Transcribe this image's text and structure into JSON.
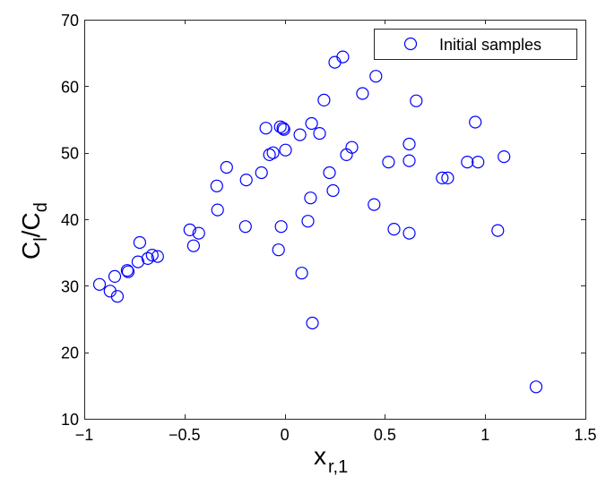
{
  "chart_data": {
    "type": "scatter",
    "title": "",
    "xlabel": "x_{r,1}",
    "xlabel_main": "x",
    "xlabel_sub": "r,1",
    "ylabel": "C_l/C_d",
    "ylabel_parts": {
      "c1": "C",
      "sub1": "l",
      "slash": "/",
      "c2": "C",
      "sub2": "d"
    },
    "xlim": [
      -1,
      1.5
    ],
    "ylim": [
      10,
      70
    ],
    "xticks": [
      -1,
      -0.5,
      0,
      0.5,
      1,
      1.5
    ],
    "xtick_labels": [
      "−1",
      "−0.5",
      "0",
      "0.5",
      "1",
      "1.5"
    ],
    "yticks": [
      10,
      20,
      30,
      40,
      50,
      60,
      70
    ],
    "ytick_labels": [
      "10",
      "20",
      "30",
      "40",
      "50",
      "60",
      "70"
    ],
    "grid": false,
    "legend_position": "upper right",
    "series": [
      {
        "name": "Initial samples",
        "marker": "open-circle",
        "color": "#0000ff",
        "points": [
          [
            -0.924,
            30.2
          ],
          [
            -0.871,
            29.2
          ],
          [
            -0.835,
            28.4
          ],
          [
            -0.848,
            31.4
          ],
          [
            -0.786,
            32.3
          ],
          [
            -0.781,
            32.1
          ],
          [
            -0.723,
            36.5
          ],
          [
            -0.732,
            33.6
          ],
          [
            -0.683,
            34.1
          ],
          [
            -0.661,
            34.6
          ],
          [
            -0.634,
            34.4
          ],
          [
            -0.473,
            38.4
          ],
          [
            -0.429,
            37.9
          ],
          [
            -0.455,
            36.0
          ],
          [
            -0.335,
            41.4
          ],
          [
            -0.339,
            45.0
          ],
          [
            -0.29,
            47.8
          ],
          [
            -0.196,
            38.9
          ],
          [
            -0.192,
            45.9
          ],
          [
            -0.116,
            47.0
          ],
          [
            -0.094,
            53.7
          ],
          [
            -0.076,
            49.7
          ],
          [
            -0.058,
            50.0
          ],
          [
            -0.022,
            53.9
          ],
          [
            -0.009,
            53.7
          ],
          [
            -0.004,
            53.5
          ],
          [
            0.004,
            50.4
          ],
          [
            -0.018,
            38.9
          ],
          [
            -0.031,
            35.4
          ],
          [
            0.076,
            52.7
          ],
          [
            0.134,
            54.4
          ],
          [
            0.174,
            52.9
          ],
          [
            0.085,
            31.9
          ],
          [
            0.116,
            39.7
          ],
          [
            0.129,
            43.2
          ],
          [
            0.138,
            24.4
          ],
          [
            0.196,
            57.9
          ],
          [
            0.25,
            63.6
          ],
          [
            0.29,
            64.4
          ],
          [
            0.308,
            49.7
          ],
          [
            0.335,
            50.8
          ],
          [
            0.223,
            47.0
          ],
          [
            0.241,
            44.3
          ],
          [
            0.388,
            58.9
          ],
          [
            0.455,
            61.5
          ],
          [
            0.656,
            57.8
          ],
          [
            0.518,
            48.6
          ],
          [
            0.621,
            51.3
          ],
          [
            0.621,
            48.8
          ],
          [
            0.446,
            42.2
          ],
          [
            0.545,
            38.5
          ],
          [
            0.621,
            37.9
          ],
          [
            0.786,
            46.2
          ],
          [
            0.813,
            46.2
          ],
          [
            0.911,
            48.6
          ],
          [
            0.964,
            48.6
          ],
          [
            0.951,
            54.6
          ],
          [
            1.094,
            49.4
          ],
          [
            1.063,
            38.3
          ],
          [
            1.254,
            14.8
          ]
        ]
      }
    ]
  },
  "legend": {
    "label": "Initial samples"
  }
}
